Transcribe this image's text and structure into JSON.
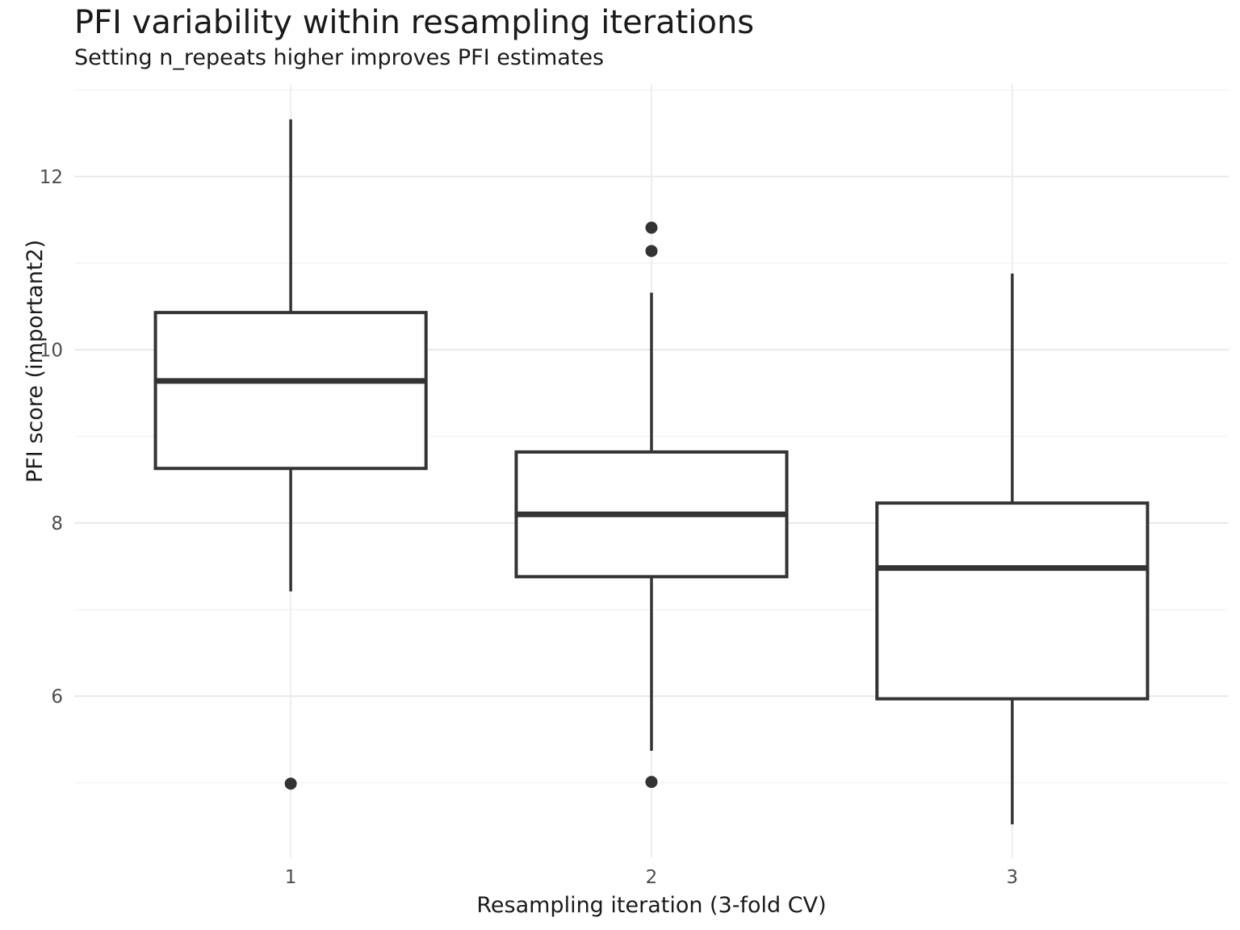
{
  "chart_data": {
    "type": "boxplot",
    "title": "PFI variability within resampling iterations",
    "subtitle": "Setting n_repeats higher improves PFI estimates",
    "xlabel": "Resampling iteration (3-fold CV)",
    "ylabel": "PFI score (important2)",
    "categories": [
      "1",
      "2",
      "3"
    ],
    "yticks": [
      6,
      8,
      10,
      12
    ],
    "yticks_minor": [
      5,
      7,
      9,
      11,
      13
    ],
    "ylim": [
      4.13,
      13.06
    ],
    "grid": "on",
    "legend": "none",
    "series": [
      {
        "category": "1",
        "whisker_low": 7.21,
        "q1": 8.63,
        "median": 9.64,
        "q3": 10.43,
        "whisker_high": 12.66,
        "outliers": [
          4.99
        ]
      },
      {
        "category": "2",
        "whisker_low": 5.37,
        "q1": 7.38,
        "median": 8.1,
        "q3": 8.82,
        "whisker_high": 10.66,
        "outliers": [
          11.41,
          11.14,
          5.01
        ]
      },
      {
        "category": "3",
        "whisker_low": 4.52,
        "q1": 5.97,
        "median": 7.48,
        "q3": 8.23,
        "whisker_high": 10.88,
        "outliers": []
      }
    ],
    "colors": {
      "box_stroke": "#333333",
      "box_fill": "#ffffff",
      "outlier": "#333333",
      "grid_major": "#e8e8e8",
      "grid_minor": "#f4f4f4",
      "grid_vertical": "#ededed",
      "axis_text": "#4d4d4d",
      "title_text": "#1a1a1a"
    }
  }
}
